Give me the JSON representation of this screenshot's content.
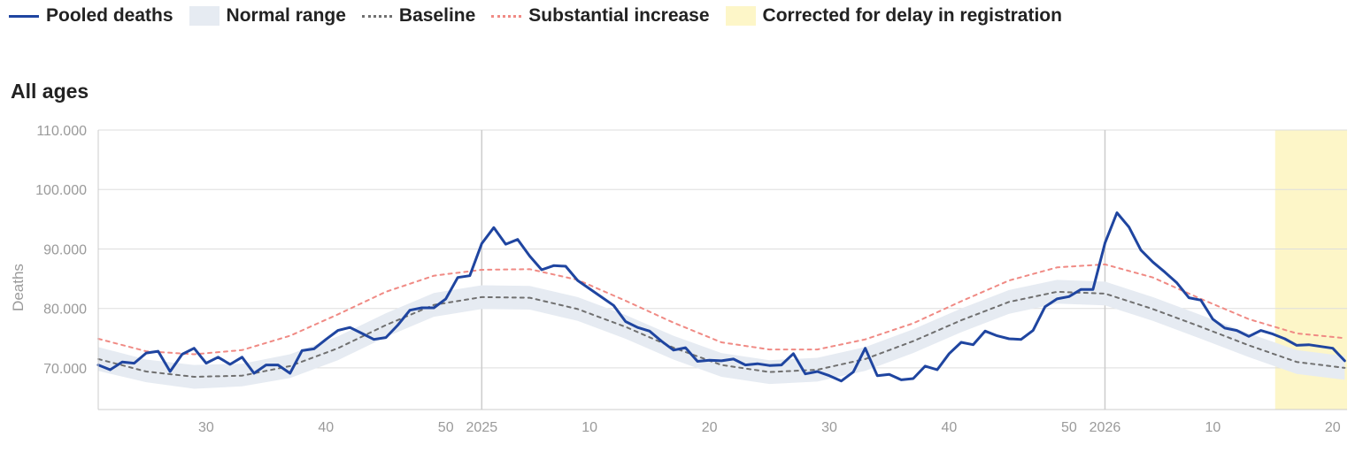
{
  "legend": {
    "items": [
      {
        "label": "Pooled deaths",
        "kind": "line",
        "color": "#1f45a0"
      },
      {
        "label": "Normal range",
        "kind": "box",
        "color": "#e6ebf2"
      },
      {
        "label": "Baseline",
        "kind": "dash",
        "color": "#707070"
      },
      {
        "label": "Substantial increase",
        "kind": "dash",
        "color": "#f08a84"
      },
      {
        "label": "Corrected for delay in registration",
        "kind": "box",
        "color": "#fdf6c8"
      }
    ]
  },
  "panel": {
    "title": "All ages"
  },
  "chart_data": {
    "type": "line",
    "title": "All ages",
    "ylabel": "Deaths",
    "ylim": [
      63000,
      110000
    ],
    "y_ticks": [
      {
        "value": 70000,
        "label": "70.000"
      },
      {
        "value": 80000,
        "label": "80.000"
      },
      {
        "value": 90000,
        "label": "90.000"
      },
      {
        "value": 100000,
        "label": "100.000"
      },
      {
        "value": 110000,
        "label": "110.000"
      }
    ],
    "x_unit": "ISO week index (week 21 of 2024 = 21; week 1 of 2025 = 53; week 1 of 2026 = 105)",
    "xlim": [
      21,
      125.2
    ],
    "x_ticks": [
      {
        "x": 30,
        "label": "30"
      },
      {
        "x": 40,
        "label": "40"
      },
      {
        "x": 50,
        "label": "50"
      },
      {
        "x": 53,
        "label": "2025"
      },
      {
        "x": 62,
        "label": "10"
      },
      {
        "x": 72,
        "label": "20"
      },
      {
        "x": 82,
        "label": "30"
      },
      {
        "x": 92,
        "label": "40"
      },
      {
        "x": 102,
        "label": "50"
      },
      {
        "x": 105,
        "label": "2026"
      },
      {
        "x": 114,
        "label": "10"
      },
      {
        "x": 124,
        "label": "20"
      }
    ],
    "year_gridlines": [
      53,
      105
    ],
    "highlight_region": {
      "label": "Corrected for delay in registration",
      "x_start": 119.2,
      "x_end": 125.2
    },
    "grid": true,
    "legend_position": "top",
    "series": [
      {
        "name": "Pooled deaths",
        "color": "#1f45a0",
        "x": [
          21,
          22,
          23,
          24,
          25,
          26,
          27,
          28,
          29,
          30,
          31,
          32,
          33,
          34,
          35,
          36,
          37,
          38,
          39,
          40,
          41,
          42,
          43,
          44,
          45,
          46,
          47,
          48,
          49,
          50,
          51,
          52,
          53,
          54,
          55,
          56,
          57,
          58,
          59,
          60,
          61,
          62,
          63,
          64,
          65,
          66,
          67,
          68,
          69,
          70,
          71,
          72,
          73,
          74,
          75,
          76,
          77,
          78,
          79,
          80,
          81,
          82,
          83,
          84,
          85,
          86,
          87,
          88,
          89,
          90,
          91,
          92,
          93,
          94,
          95,
          96,
          97,
          98,
          99,
          100,
          101,
          102,
          103,
          104,
          105,
          106,
          107,
          108,
          109,
          110,
          111,
          112,
          113,
          114,
          115,
          116,
          117,
          118,
          119,
          120,
          121,
          122,
          123,
          124,
          125
        ],
        "y": [
          70500,
          69700,
          71000,
          70800,
          72500,
          72800,
          69400,
          72300,
          73300,
          70800,
          71800,
          70600,
          71800,
          69100,
          70500,
          70500,
          69100,
          72900,
          73200,
          74800,
          76300,
          76800,
          75800,
          74800,
          75100,
          77200,
          79700,
          80100,
          80100,
          81600,
          85200,
          85500,
          90900,
          93600,
          90800,
          91600,
          88800,
          86500,
          87200,
          87100,
          84700,
          83300,
          81900,
          80500,
          77800,
          76800,
          76200,
          74500,
          73000,
          73400,
          71100,
          71300,
          71200,
          71500,
          70500,
          70700,
          70400,
          70500,
          72400,
          69000,
          69400,
          68700,
          67800,
          69300,
          73300,
          68700,
          68900,
          68000,
          68200,
          70300,
          69700,
          72400,
          74300,
          73900,
          76200,
          75400,
          74900,
          74800,
          76300,
          80300,
          81600,
          82000,
          83200,
          83200,
          91000,
          96100,
          93700,
          89800,
          87800,
          86100,
          84300,
          81800,
          81400,
          78200,
          76700,
          76300,
          75300,
          76300,
          75700,
          74900,
          73800,
          73900,
          73600,
          73300,
          71200
        ]
      },
      {
        "name": "Baseline",
        "color": "#707070",
        "x": [
          21,
          25,
          29,
          33,
          37,
          41,
          45,
          49,
          53,
          57,
          61,
          65,
          69,
          73,
          77,
          81,
          85,
          89,
          93,
          97,
          101,
          105,
          109,
          113,
          117,
          121,
          125
        ],
        "y": [
          71500,
          69400,
          68500,
          68700,
          70300,
          73300,
          77200,
          80600,
          81900,
          81800,
          79900,
          76900,
          73400,
          70500,
          69300,
          69700,
          71500,
          74500,
          78000,
          81100,
          82800,
          82500,
          79900,
          76900,
          73800,
          71000,
          70000
        ]
      },
      {
        "name": "Normal range",
        "kind": "band",
        "color": "#e6ebf2",
        "x": [
          21,
          25,
          29,
          33,
          37,
          41,
          45,
          49,
          53,
          57,
          61,
          65,
          69,
          73,
          77,
          81,
          85,
          89,
          93,
          97,
          101,
          105,
          109,
          113,
          117,
          121,
          125
        ],
        "low": [
          69500,
          67600,
          66500,
          66900,
          68300,
          71300,
          75200,
          78600,
          79900,
          79800,
          77900,
          74900,
          71400,
          68500,
          67300,
          67700,
          69500,
          72500,
          76000,
          79100,
          80800,
          80500,
          77900,
          74900,
          71800,
          69000,
          68000
        ],
        "high": [
          73500,
          71400,
          70500,
          70700,
          72300,
          75300,
          79200,
          82600,
          83900,
          83800,
          81900,
          78900,
          75400,
          72500,
          71300,
          71700,
          73500,
          76500,
          80000,
          83100,
          84800,
          84500,
          81900,
          78900,
          75800,
          73000,
          72000
        ]
      },
      {
        "name": "Substantial increase",
        "color": "#f08a84",
        "x": [
          21,
          25,
          29,
          33,
          37,
          41,
          45,
          49,
          53,
          57,
          61,
          65,
          69,
          73,
          77,
          81,
          85,
          89,
          93,
          97,
          101,
          105,
          109,
          113,
          117,
          121,
          125
        ],
        "y": [
          74900,
          72800,
          72300,
          73000,
          75400,
          79000,
          82800,
          85500,
          86500,
          86600,
          84800,
          81300,
          77600,
          74300,
          73100,
          73100,
          74800,
          77500,
          81200,
          84700,
          86900,
          87400,
          85200,
          81600,
          78200,
          75800,
          75000
        ]
      }
    ]
  }
}
